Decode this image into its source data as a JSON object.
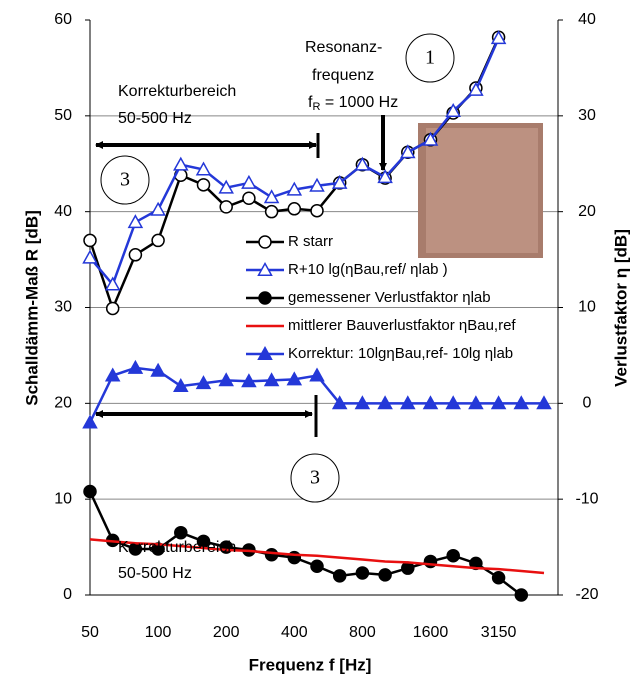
{
  "chart_data": {
    "type": "line",
    "xlabel": "Frequenz f [Hz]",
    "ylabel": "Schalldämm-Maß R [dB]",
    "y2label": "Verlustfaktor η [dB]",
    "categories": [
      "50",
      null,
      null,
      "100",
      null,
      null,
      "200",
      null,
      null,
      "400",
      null,
      null,
      "800",
      null,
      null,
      "1600",
      null,
      null,
      "3150",
      null,
      null
    ],
    "ylim": [
      0,
      60
    ],
    "yticks": [
      0,
      10,
      20,
      30,
      40,
      50,
      60
    ],
    "y2lim": [
      -20,
      40
    ],
    "y2ticks": [
      -20,
      -10,
      0,
      10,
      20,
      30,
      40
    ],
    "grid": true,
    "series": [
      {
        "name": "R starr",
        "color": "#000000",
        "marker": "circle-open",
        "axis": "y",
        "values": [
          37.0,
          29.9,
          35.5,
          37.0,
          43.8,
          42.8,
          40.5,
          41.4,
          40.0,
          40.3,
          40.1,
          43.0,
          44.9,
          43.5,
          46.2,
          47.5,
          50.3,
          52.9,
          58.2,
          null,
          null
        ]
      },
      {
        "name": "R+10 lg(ηBau,ref/ ηlab )",
        "color": "#2438d8",
        "marker": "triangle-open",
        "axis": "y",
        "values": [
          35.2,
          32.4,
          38.9,
          40.2,
          44.9,
          44.4,
          42.5,
          43.0,
          41.5,
          42.3,
          42.7,
          43.0,
          44.9,
          43.6,
          46.2,
          47.5,
          50.5,
          52.7,
          58.1,
          null,
          null
        ]
      },
      {
        "name": "gemessener Verlustfaktor ηlab",
        "color": "#000000",
        "marker": "circle",
        "axis": "y2",
        "values": [
          -9.2,
          -14.3,
          -15.2,
          -15.2,
          -13.5,
          -14.4,
          -15.0,
          -15.3,
          -15.8,
          -16.1,
          -17.0,
          -18.0,
          -17.7,
          -17.9,
          -17.2,
          -16.5,
          -15.9,
          -16.7,
          -18.2,
          -20.0,
          null
        ]
      },
      {
        "name": "mittlerer Bauverlustfaktor ηBau,ref",
        "color": "#e81010",
        "marker": "none",
        "axis": "y2",
        "values": [
          -14.2,
          -14.4,
          -14.6,
          -14.7,
          -14.9,
          -15.1,
          -15.3,
          -15.4,
          -15.6,
          -15.8,
          -15.9,
          -16.1,
          -16.3,
          -16.5,
          -16.6,
          -16.8,
          -17.0,
          -17.2,
          -17.3,
          -17.5,
          -17.7
        ]
      },
      {
        "name": "Korrektur: 10lgηBau,ref- 10lg ηlab",
        "color": "#2438d8",
        "marker": "triangle",
        "axis": "y2",
        "values": [
          -2.0,
          2.9,
          3.7,
          3.4,
          1.8,
          2.1,
          2.4,
          2.3,
          2.4,
          2.5,
          2.9,
          0,
          0,
          0,
          0,
          0,
          0,
          0,
          0,
          0,
          0
        ]
      }
    ],
    "annotations": {
      "range_top": [
        "Korrekturbereich",
        "50-500 Hz"
      ],
      "range_bottom": [
        "Korrekturbereich",
        "50-500 Hz"
      ],
      "resonance": [
        "Resonanz-",
        "frequenz"
      ],
      "resonance_f": "f",
      "resonance_sub": "R",
      "resonance_rest": " = 1000 Hz",
      "circle_1": "1",
      "circle_3a": "3",
      "circle_3b": "3"
    }
  }
}
